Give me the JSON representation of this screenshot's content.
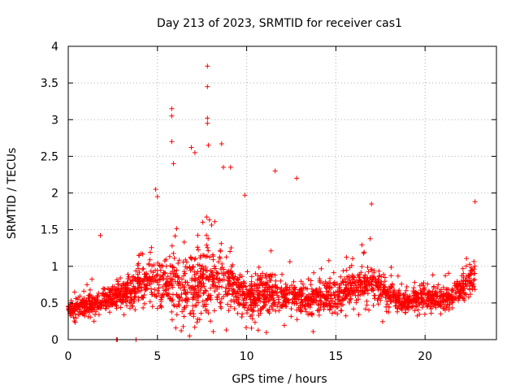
{
  "chart_data": {
    "type": "scatter",
    "title": "Day 213 of 2023, SRMTID for receiver cas1",
    "xlabel": "GPS time / hours",
    "ylabel": "SRMTID / TECUs",
    "xlim": [
      0,
      24
    ],
    "ylim": [
      0,
      4
    ],
    "xticks": [
      0,
      5,
      10,
      15,
      20
    ],
    "yticks": [
      0,
      0.5,
      1,
      1.5,
      2,
      2.5,
      3,
      3.5,
      4
    ],
    "x_tick_labels": [
      "0",
      "5",
      "10",
      "15",
      "20"
    ],
    "y_tick_labels": [
      "0",
      "0.5",
      "1",
      "1.5",
      "2",
      "2.5",
      "3",
      "3.5",
      "4"
    ],
    "grid": true,
    "marker": "plus",
    "color": "#ff0000",
    "envelope_hours": [
      0,
      1,
      2,
      3,
      4,
      5,
      6,
      7,
      8,
      9,
      10,
      11,
      12,
      13,
      14,
      15,
      16,
      17,
      18,
      19,
      20,
      21,
      22,
      22.8
    ],
    "envelope_median": [
      0.42,
      0.45,
      0.55,
      0.6,
      0.75,
      0.85,
      0.7,
      0.75,
      0.85,
      0.8,
      0.55,
      0.6,
      0.6,
      0.55,
      0.6,
      0.6,
      0.7,
      0.8,
      0.6,
      0.5,
      0.6,
      0.55,
      0.7,
      0.9
    ],
    "envelope_spread": [
      0.25,
      0.3,
      0.35,
      0.4,
      0.6,
      0.9,
      1.0,
      1.2,
      1.2,
      0.95,
      0.6,
      0.65,
      0.55,
      0.5,
      0.55,
      0.5,
      0.5,
      0.55,
      0.4,
      0.3,
      0.35,
      0.35,
      0.4,
      0.6
    ],
    "peaks": [
      {
        "x": 5.8,
        "y": 3.15
      },
      {
        "x": 5.8,
        "y": 3.05
      },
      {
        "x": 5.8,
        "y": 2.7
      },
      {
        "x": 5.9,
        "y": 2.4
      },
      {
        "x": 7.8,
        "y": 3.73
      },
      {
        "x": 7.8,
        "y": 3.45
      },
      {
        "x": 7.8,
        "y": 3.02
      },
      {
        "x": 7.8,
        "y": 2.95
      },
      {
        "x": 7.85,
        "y": 2.65
      },
      {
        "x": 6.9,
        "y": 2.62
      },
      {
        "x": 7.1,
        "y": 2.55
      },
      {
        "x": 8.6,
        "y": 2.67
      },
      {
        "x": 8.7,
        "y": 2.35
      },
      {
        "x": 9.1,
        "y": 2.35
      },
      {
        "x": 11.6,
        "y": 2.3
      },
      {
        "x": 12.8,
        "y": 2.2
      },
      {
        "x": 9.9,
        "y": 1.97
      },
      {
        "x": 17.0,
        "y": 1.85
      },
      {
        "x": 22.8,
        "y": 1.88
      },
      {
        "x": 4.9,
        "y": 2.05
      },
      {
        "x": 5.0,
        "y": 1.95
      },
      {
        "x": 1.8,
        "y": 1.42
      },
      {
        "x": 2.7,
        "y": 0.0
      },
      {
        "x": 2.75,
        "y": 0.0
      },
      {
        "x": 3.8,
        "y": 0.0
      },
      {
        "x": 6.8,
        "y": 0.05
      }
    ]
  }
}
